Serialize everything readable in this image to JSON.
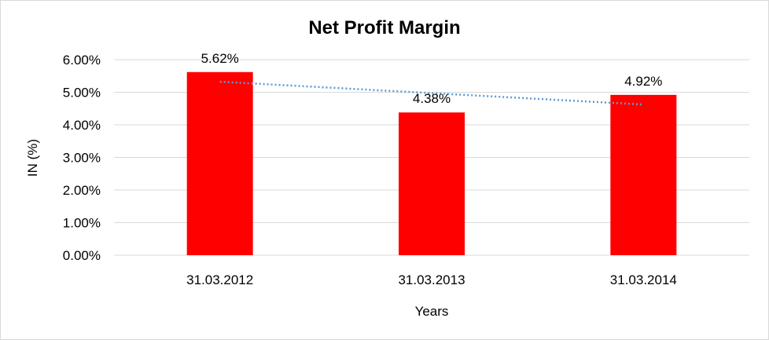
{
  "chart_data": {
    "type": "bar",
    "title": "Net Profit Margin",
    "xlabel": "Years",
    "ylabel": "IN (%)",
    "categories": [
      "31.03.2012",
      "31.03.2013",
      "31.03.2014"
    ],
    "values": [
      5.62,
      4.38,
      4.92
    ],
    "data_labels": [
      "5.62%",
      "4.38%",
      "4.92%"
    ],
    "ylim": [
      0,
      6
    ],
    "yticks": [
      "0.00%",
      "1.00%",
      "2.00%",
      "3.00%",
      "4.00%",
      "5.00%",
      "6.00%"
    ],
    "grid": true,
    "trendline": {
      "type": "linear",
      "style": "dotted"
    },
    "colors": {
      "bar": "#ff0000",
      "trendline": "#5b9bd5",
      "grid": "#d9d9d9"
    }
  }
}
